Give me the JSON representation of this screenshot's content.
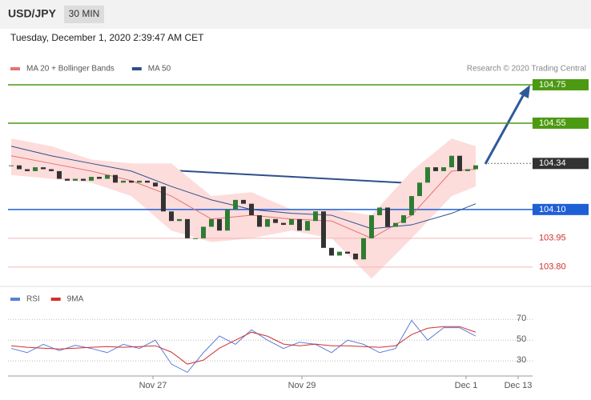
{
  "header": {
    "symbol": "USD/JPY",
    "interval": "30 MIN",
    "timestamp": "Tuesday, December 1, 2020 2:39:47 AM CET"
  },
  "chart_data": [
    {
      "type": "candlestick",
      "credit": "Research © 2020 Trading Central",
      "xlim": [
        0,
        66
      ],
      "ylim": [
        103.72,
        104.9
      ],
      "xticks": [
        {
          "value": 17.7,
          "label": "Nov 27"
        },
        {
          "value": 36.3,
          "label": "Nov 29"
        },
        {
          "value": 56.8,
          "label": "Dec 1"
        },
        {
          "value": 63.3,
          "label": "Dec 13"
        }
      ],
      "up_color": "#2e7d32",
      "down_color": "#333333",
      "x": [
        0,
        1,
        2,
        3,
        4,
        5,
        6,
        7,
        8,
        9,
        10,
        11,
        12,
        13,
        14,
        15,
        16,
        17,
        18,
        19,
        20,
        21,
        22,
        23,
        24,
        25,
        26,
        27,
        28,
        29,
        30,
        31,
        32,
        33,
        34,
        35,
        36,
        37,
        38,
        39,
        40,
        41,
        42,
        43,
        44,
        45,
        46,
        47,
        48,
        49,
        50,
        51,
        52,
        53,
        54,
        55,
        56,
        57,
        58
      ],
      "close": [
        104.33,
        104.31,
        104.3,
        104.32,
        104.31,
        104.3,
        104.26,
        104.25,
        104.26,
        104.25,
        104.27,
        104.26,
        104.28,
        104.24,
        104.25,
        104.24,
        104.25,
        104.24,
        104.22,
        104.09,
        104.04,
        104.05,
        103.95,
        103.95,
        104.01,
        104.05,
        103.99,
        104.1,
        104.15,
        104.13,
        104.07,
        104.01,
        104.05,
        104.03,
        104.02,
        104.05,
        103.99,
        104.04,
        104.09,
        103.9,
        103.86,
        103.88,
        103.87,
        103.84,
        103.95,
        104.07,
        104.11,
        104.01,
        104.03,
        104.07,
        104.17,
        104.24,
        104.32,
        104.3,
        104.32,
        104.38,
        104.3,
        104.31,
        104.33
      ],
      "series": [
        {
          "name": "MA 20 + Bollinger Bands",
          "color": "#e57373",
          "band_color": "#fddcdc",
          "x": [
            0,
            5,
            10,
            15,
            20,
            25,
            30,
            35,
            40,
            45,
            50,
            55,
            58
          ],
          "values": [
            104.38,
            104.34,
            104.3,
            104.25,
            104.17,
            104.05,
            104.07,
            104.05,
            104.04,
            103.95,
            104.07,
            104.3,
            104.31
          ],
          "upper": [
            104.47,
            104.43,
            104.36,
            104.34,
            104.34,
            104.17,
            104.19,
            104.1,
            104.1,
            104.07,
            104.3,
            104.47,
            104.43
          ],
          "lower": [
            104.28,
            104.26,
            104.24,
            104.17,
            103.99,
            103.93,
            103.95,
            103.99,
            103.95,
            103.74,
            103.95,
            104.17,
            104.22
          ]
        },
        {
          "name": "MA 50",
          "color": "#2d4f8a",
          "x": [
            0,
            5,
            10,
            15,
            20,
            25,
            30,
            35,
            40,
            45,
            50,
            55,
            58
          ],
          "values": [
            104.43,
            104.38,
            104.34,
            104.3,
            104.22,
            104.15,
            104.1,
            104.08,
            104.07,
            104.0,
            104.02,
            104.08,
            104.13
          ]
        }
      ],
      "levels": [
        {
          "value": 104.75,
          "label": "104.75",
          "color": "#4c9a12",
          "style": "solid",
          "box": true
        },
        {
          "value": 104.55,
          "label": "104.55",
          "color": "#4c9a12",
          "style": "solid",
          "box": true
        },
        {
          "value": 104.34,
          "label": "104.34",
          "color": "#333333",
          "style": "dotted",
          "box": true
        },
        {
          "value": 104.1,
          "label": "104.10",
          "color": "#1f5fd6",
          "style": "solid",
          "box": true
        },
        {
          "value": 103.95,
          "label": "103.95",
          "color": "#d32f2f",
          "style": "pink",
          "box": false
        },
        {
          "value": 103.8,
          "label": "103.80",
          "color": "#d32f2f",
          "style": "pink",
          "box": false
        }
      ]
    },
    {
      "type": "line",
      "ylim": [
        17,
        81
      ],
      "yticks": [
        30,
        50,
        70
      ],
      "grid": true,
      "series": [
        {
          "name": "RSI",
          "color": "#5b7fd6",
          "x": [
            0,
            2,
            4,
            6,
            8,
            10,
            12,
            14,
            16,
            18,
            20,
            22,
            24,
            26,
            28,
            30,
            32,
            34,
            36,
            38,
            40,
            42,
            44,
            46,
            48,
            50,
            52,
            54,
            56,
            58
          ],
          "values": [
            42,
            38,
            46,
            40,
            45,
            42,
            38,
            46,
            42,
            50,
            27,
            19,
            38,
            54,
            46,
            60,
            50,
            42,
            48,
            46,
            38,
            50,
            46,
            38,
            42,
            69,
            50,
            62,
            62,
            54
          ]
        },
        {
          "name": "9MA",
          "color": "#d32f2f",
          "x": [
            0,
            2,
            4,
            6,
            8,
            10,
            12,
            14,
            16,
            18,
            20,
            22,
            24,
            26,
            28,
            30,
            32,
            34,
            36,
            38,
            40,
            42,
            44,
            46,
            48,
            50,
            52,
            54,
            56,
            58
          ],
          "values": [
            44.6,
            43.1,
            42.3,
            41.5,
            42.3,
            43.1,
            43.8,
            43.1,
            43.8,
            44.6,
            38.5,
            26.9,
            30.8,
            42.3,
            50,
            57.7,
            53.8,
            46.2,
            44.6,
            46.2,
            44.6,
            44.6,
            43.8,
            43.1,
            44.6,
            55.4,
            61.5,
            63.1,
            63.1,
            57.7
          ]
        }
      ]
    }
  ]
}
